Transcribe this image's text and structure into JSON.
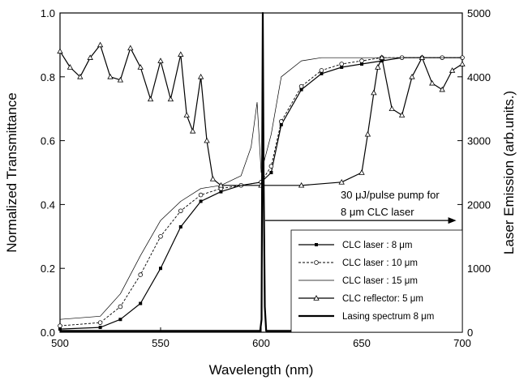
{
  "chart_data": {
    "type": "line",
    "xlabel": "Wavelength (nm)",
    "ylabel_left": "Normalized Transmittance",
    "ylabel_right": "Laser Emission (arb.units.)",
    "xlim": [
      500,
      700
    ],
    "ylim_left": [
      0,
      1.0
    ],
    "ylim_right": [
      0,
      5000
    ],
    "x_ticks": [
      "500",
      "550",
      "600",
      "650",
      "700"
    ],
    "y_left_ticks": [
      "0.0",
      "0.2",
      "0.4",
      "0.6",
      "0.8",
      "1.0"
    ],
    "y_right_ticks": [
      "0",
      "1000",
      "2000",
      "3000",
      "4000",
      "5000"
    ],
    "grid": false,
    "legend_position": "bottom-right",
    "annotation": {
      "line1": "30 μJ/pulse pump for",
      "line2": "8 μm CLC laser",
      "arrow_from_x": 602,
      "arrow_to_x": 697,
      "y": 0.35
    },
    "series": [
      {
        "name": "CLC laser : 8 μm",
        "axis": "left",
        "style": "filled-square",
        "x": [
          500,
          520,
          530,
          540,
          550,
          560,
          570,
          580,
          590,
          600,
          605,
          610,
          620,
          630,
          640,
          650,
          660,
          670,
          680,
          690,
          700
        ],
        "y": [
          0.01,
          0.015,
          0.04,
          0.09,
          0.2,
          0.33,
          0.41,
          0.44,
          0.46,
          0.47,
          0.5,
          0.65,
          0.76,
          0.81,
          0.83,
          0.84,
          0.85,
          0.86,
          0.86,
          0.86,
          0.86
        ]
      },
      {
        "name": "CLC laser : 10 μm",
        "axis": "left",
        "style": "open-circle",
        "x": [
          500,
          520,
          530,
          540,
          550,
          560,
          570,
          580,
          590,
          600,
          605,
          610,
          620,
          630,
          640,
          650,
          660,
          670,
          680,
          690,
          700
        ],
        "y": [
          0.02,
          0.03,
          0.08,
          0.18,
          0.3,
          0.38,
          0.43,
          0.45,
          0.46,
          0.47,
          0.52,
          0.66,
          0.77,
          0.82,
          0.84,
          0.85,
          0.86,
          0.86,
          0.86,
          0.86,
          0.86
        ]
      },
      {
        "name": "CLC laser : 15 μm",
        "axis": "left",
        "style": "thin",
        "x": [
          500,
          520,
          530,
          540,
          550,
          560,
          570,
          580,
          590,
          595,
          598,
          600,
          605,
          610,
          620,
          630,
          640,
          650,
          660,
          670,
          680,
          690,
          700
        ],
        "y": [
          0.04,
          0.05,
          0.12,
          0.24,
          0.35,
          0.41,
          0.45,
          0.46,
          0.49,
          0.58,
          0.72,
          0.5,
          0.62,
          0.8,
          0.85,
          0.86,
          0.86,
          0.86,
          0.86,
          0.86,
          0.86,
          0.86,
          0.86
        ]
      },
      {
        "name": "CLC reflector: 5 μm",
        "axis": "left",
        "style": "open-triangle",
        "x": [
          500,
          505,
          510,
          515,
          520,
          525,
          530,
          535,
          540,
          545,
          550,
          555,
          560,
          563,
          566,
          570,
          573,
          576,
          580,
          600,
          620,
          640,
          650,
          653,
          656,
          658,
          660,
          665,
          670,
          675,
          680,
          685,
          690,
          695,
          700
        ],
        "y": [
          0.88,
          0.83,
          0.8,
          0.86,
          0.9,
          0.8,
          0.79,
          0.89,
          0.83,
          0.73,
          0.85,
          0.73,
          0.87,
          0.68,
          0.63,
          0.8,
          0.6,
          0.48,
          0.46,
          0.46,
          0.46,
          0.47,
          0.5,
          0.62,
          0.75,
          0.83,
          0.86,
          0.7,
          0.68,
          0.8,
          0.86,
          0.78,
          0.76,
          0.82,
          0.84
        ]
      },
      {
        "name": "Lasing spectrum 8 μm",
        "axis": "right",
        "style": "thick-solid",
        "x": [
          500,
          599.5,
          600.2,
          600.5,
          600.8,
          601.2,
          601.8,
          602.5,
          700
        ],
        "y": [
          20,
          20,
          200,
          2500,
          5000,
          2500,
          400,
          20,
          20
        ]
      }
    ]
  }
}
